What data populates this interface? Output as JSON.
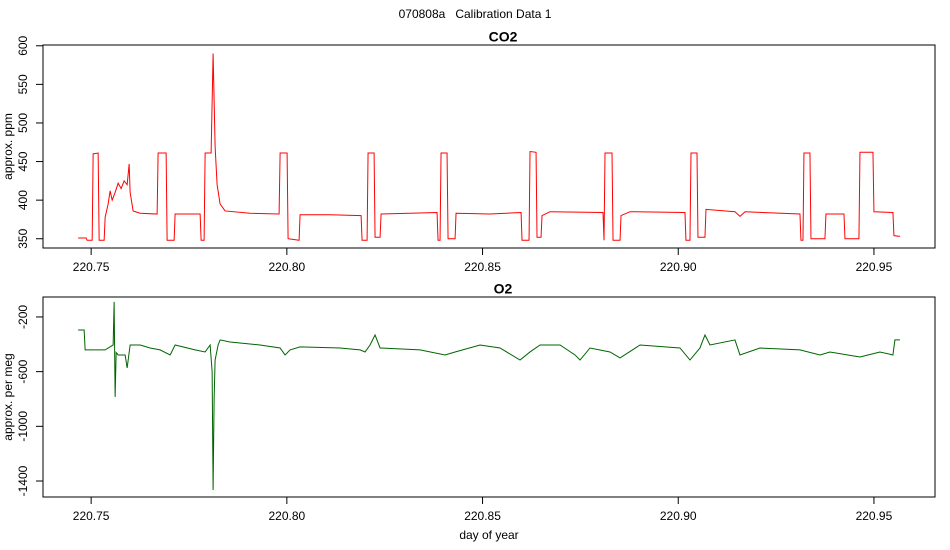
{
  "title": "070808a   Calibration Data 1",
  "chart_data": [
    {
      "type": "line",
      "title": "CO2",
      "ylabel": "approx. ppm",
      "color": "#ff0000",
      "xlim": [
        220.7377,
        220.9656
      ],
      "ylim": [
        338,
        601
      ],
      "xticks": [
        220.75,
        {
          "value": 220.8,
          "label": "220.80"
        },
        220.85,
        {
          "value": 220.9,
          "label": "220.90"
        },
        220.95
      ],
      "yticks": [
        350,
        400,
        450,
        500,
        550,
        600
      ],
      "x": [
        220.74668,
        220.74872,
        220.74898,
        220.75026,
        220.75051,
        220.75179,
        220.75204,
        220.75332,
        220.75358,
        220.75434,
        220.75485,
        220.75537,
        220.75613,
        220.7569,
        220.75766,
        220.75843,
        220.7592,
        220.75971,
        220.75996,
        220.76073,
        220.76251,
        220.76686,
        220.76711,
        220.76916,
        220.76941,
        220.7712,
        220.77145,
        220.77784,
        220.7781,
        220.77886,
        220.77912,
        220.78065,
        220.78116,
        220.78167,
        220.78218,
        220.78295,
        220.78423,
        220.79061,
        220.79802,
        220.79828,
        220.80006,
        220.80032,
        220.80313,
        220.80338,
        220.81105,
        220.81897,
        220.81922,
        220.8205,
        220.82075,
        220.82229,
        220.82254,
        220.82382,
        220.82408,
        220.83148,
        220.83838,
        220.83863,
        220.83914,
        220.8394,
        220.84093,
        220.84119,
        220.84298,
        220.84323,
        220.85192,
        220.85984,
        220.86009,
        220.86188,
        220.86213,
        220.86367,
        220.86392,
        220.86494,
        220.8652,
        220.86724,
        220.88078,
        220.88104,
        220.88129,
        220.88308,
        220.88334,
        220.88513,
        220.88538,
        220.88768,
        220.90172,
        220.90197,
        220.903,
        220.90326,
        220.90479,
        220.90504,
        220.90683,
        220.90709,
        220.91449,
        220.91577,
        220.91705,
        220.9311,
        220.93135,
        220.93187,
        220.93212,
        220.93365,
        220.93391,
        220.93748,
        220.93774,
        220.94234,
        220.9426,
        220.94617,
        220.94643,
        220.94975,
        220.95,
        220.95485,
        220.95511,
        220.95664
      ],
      "values": [
        351,
        351,
        348,
        348,
        460,
        461,
        348,
        348,
        378,
        395,
        412,
        400,
        410,
        422,
        415,
        425,
        420,
        447,
        410,
        386,
        383,
        382,
        461,
        461,
        348,
        348,
        382,
        382,
        348,
        348,
        461,
        461,
        590,
        470,
        420,
        395,
        386,
        383,
        382,
        461,
        461,
        350,
        348,
        381,
        381,
        380,
        348,
        348,
        461,
        461,
        352,
        352,
        382,
        383,
        384,
        348,
        348,
        461,
        461,
        350,
        350,
        383,
        382,
        384,
        348,
        348,
        463,
        462,
        352,
        352,
        380,
        385,
        384,
        348,
        461,
        461,
        348,
        348,
        380,
        385,
        384,
        348,
        348,
        461,
        461,
        352,
        352,
        388,
        385,
        379,
        385,
        382,
        348,
        348,
        461,
        461,
        350,
        350,
        382,
        382,
        350,
        350,
        462,
        462,
        385,
        384,
        354,
        353
      ]
    },
    {
      "type": "line",
      "title": "O2",
      "ylabel": "approx. per meg",
      "xlabel": "day of year",
      "color": "#006400",
      "xlim": [
        220.7377,
        220.9656
      ],
      "ylim": [
        -1517,
        -54
      ],
      "xticks": [
        220.75,
        {
          "value": 220.8,
          "label": "220.80"
        },
        220.85,
        {
          "value": 220.9,
          "label": "220.90"
        },
        220.95
      ],
      "yticks": [
        -200,
        -600,
        -1000,
        -1400
      ],
      "x": [
        220.74668,
        220.74821,
        220.74847,
        220.75358,
        220.75562,
        220.75587,
        220.75613,
        220.75639,
        220.7569,
        220.75868,
        220.7592,
        220.75996,
        220.76252,
        220.76507,
        220.76762,
        220.77018,
        220.77146,
        220.77656,
        220.77912,
        220.7804,
        220.78091,
        220.78116,
        220.78142,
        220.78167,
        220.78244,
        220.78295,
        220.7855,
        220.79317,
        220.79828,
        220.79955,
        220.80083,
        220.80338,
        220.8136,
        220.81871,
        220.81999,
        220.82126,
        220.82254,
        220.82382,
        220.83404,
        220.84042,
        220.84298,
        220.84936,
        220.85447,
        220.85958,
        220.86213,
        220.86469,
        220.8698,
        220.87363,
        220.87491,
        220.87746,
        220.88257,
        220.88513,
        220.89024,
        220.90045,
        220.903,
        220.90555,
        220.90683,
        220.90811,
        220.91449,
        220.91577,
        220.92088,
        220.9311,
        220.93621,
        220.93876,
        220.94643,
        220.95153,
        220.95485,
        220.95536,
        220.95664
      ],
      "values": [
        -295,
        -295,
        -441,
        -441,
        -405,
        -90,
        -785,
        -460,
        -478,
        -478,
        -573,
        -405,
        -405,
        -427,
        -441,
        -478,
        -405,
        -441,
        -456,
        -405,
        -600,
        -1466,
        -800,
        -515,
        -405,
        -368,
        -383,
        -405,
        -427,
        -478,
        -441,
        -419,
        -427,
        -441,
        -456,
        -405,
        -332,
        -427,
        -441,
        -478,
        -456,
        -405,
        -427,
        -515,
        -456,
        -405,
        -405,
        -478,
        -515,
        -427,
        -456,
        -500,
        -405,
        -427,
        -515,
        -427,
        -332,
        -405,
        -368,
        -478,
        -427,
        -441,
        -478,
        -456,
        -493,
        -456,
        -478,
        -368,
        -368
      ]
    }
  ]
}
